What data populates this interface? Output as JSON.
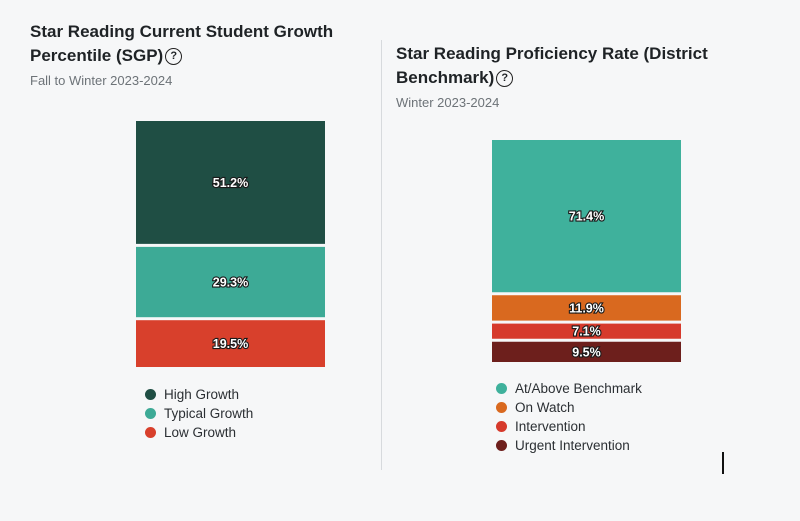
{
  "charts": [
    {
      "title": "Star Reading Current Student Growth Percentile (SGP)",
      "subtitle": "Fall to Winter 2023-2024",
      "help_icon": "question-circle-icon"
    },
    {
      "title": "Star Reading Proficiency Rate (District Benchmark)",
      "subtitle": "Winter 2023-2024",
      "help_icon": "question-circle-icon"
    }
  ],
  "chart_data": [
    {
      "type": "bar",
      "stacked": true,
      "title": "Star Reading Current Student Growth Percentile (SGP)",
      "subtitle": "Fall to Winter 2023-2024",
      "categories": [
        ""
      ],
      "series": [
        {
          "name": "High Growth",
          "values": [
            51.2
          ],
          "label": "51.2%",
          "color": "#1f4e44"
        },
        {
          "name": "Typical Growth",
          "values": [
            29.3
          ],
          "label": "29.3%",
          "color": "#3daa96"
        },
        {
          "name": "Low Growth",
          "values": [
            19.5
          ],
          "label": "19.5%",
          "color": "#d8402c"
        }
      ],
      "ylim": [
        0,
        100
      ],
      "grid": false,
      "legend": "bottom"
    },
    {
      "type": "bar",
      "stacked": true,
      "title": "Star Reading Proficiency Rate (District Benchmark)",
      "subtitle": "Winter 2023-2024",
      "categories": [
        ""
      ],
      "series": [
        {
          "name": "At/Above Benchmark",
          "values": [
            71.4
          ],
          "label": "71.4%",
          "color": "#3fb19c"
        },
        {
          "name": "On Watch",
          "values": [
            11.9
          ],
          "label": "11.9%",
          "color": "#d9691f"
        },
        {
          "name": "Intervention",
          "values": [
            7.1
          ],
          "label": "7.1%",
          "color": "#d63a2c"
        },
        {
          "name": "Urgent Intervention",
          "values": [
            9.5
          ],
          "label": "9.5%",
          "color": "#6d1f1c"
        }
      ],
      "ylim": [
        0,
        100
      ],
      "grid": false,
      "legend": "bottom"
    }
  ]
}
